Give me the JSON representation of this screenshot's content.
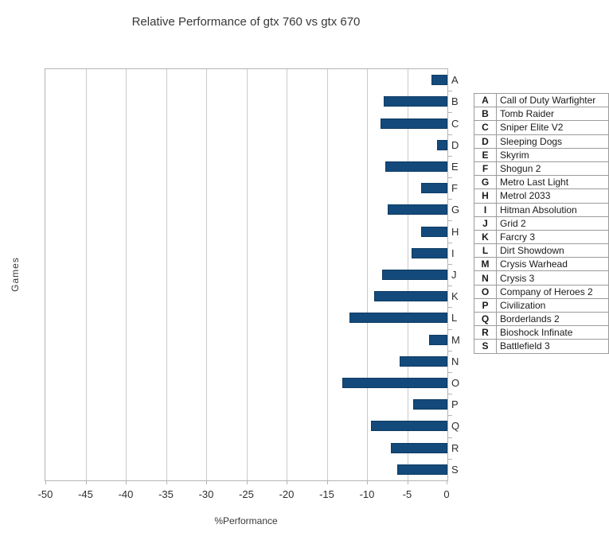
{
  "chart_data": {
    "type": "bar",
    "orientation": "horizontal",
    "title": "Relative Performance of gtx 760 vs gtx 670",
    "xlabel": "%Performance",
    "ylabel": "Games",
    "xlim": [
      -50,
      0
    ],
    "xticks": [
      -50,
      -45,
      -40,
      -35,
      -30,
      -25,
      -20,
      -15,
      -10,
      -5,
      0
    ],
    "grid": true,
    "legend_position": "right",
    "bar_color": "#134A7B",
    "bar_border_color": "#0d3a63",
    "gridline_color": "#cbcbcb",
    "axis_color": "#b4b4b4",
    "text_color": "#303030",
    "categories": [
      "A",
      "B",
      "C",
      "D",
      "E",
      "F",
      "G",
      "H",
      "I",
      "J",
      "K",
      "L",
      "M",
      "N",
      "O",
      "P",
      "Q",
      "R",
      "S"
    ],
    "values": [
      -2.0,
      -7.9,
      -8.3,
      -1.3,
      -7.7,
      -3.3,
      -7.4,
      -3.3,
      -4.5,
      -8.1,
      -9.1,
      -12.2,
      -2.3,
      -5.9,
      -13.1,
      -4.3,
      -9.5,
      -7.0,
      -6.2
    ],
    "legend": [
      {
        "key": "A",
        "label": "Call of Duty Warfighter"
      },
      {
        "key": "B",
        "label": "Tomb Raider"
      },
      {
        "key": "C",
        "label": "Sniper Elite V2"
      },
      {
        "key": "D",
        "label": "Sleeping Dogs"
      },
      {
        "key": "E",
        "label": "Skyrim"
      },
      {
        "key": "F",
        "label": "Shogun 2"
      },
      {
        "key": "G",
        "label": "Metro Last Light"
      },
      {
        "key": "H",
        "label": "Metrol 2033"
      },
      {
        "key": "I",
        "label": "Hitman Absolution"
      },
      {
        "key": "J",
        "label": "Grid 2"
      },
      {
        "key": "K",
        "label": "Farcry 3"
      },
      {
        "key": "L",
        "label": "Dirt Showdown"
      },
      {
        "key": "M",
        "label": "Crysis Warhead"
      },
      {
        "key": "N",
        "label": "Crysis 3"
      },
      {
        "key": "O",
        "label": "Company of Heroes 2"
      },
      {
        "key": "P",
        "label": "Civilization"
      },
      {
        "key": "Q",
        "label": "Borderlands 2"
      },
      {
        "key": "R",
        "label": "Bioshock Infinate"
      },
      {
        "key": "S",
        "label": "Battlefield 3"
      }
    ]
  }
}
